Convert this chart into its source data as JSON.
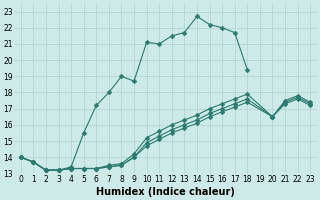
{
  "bg_color": "#ceeae8",
  "grid_color": "#aed4d0",
  "line_color": "#2a7a6e",
  "line_width": 0.8,
  "marker": "D",
  "marker_size": 2.5,
  "xlabel": "Humidex (Indice chaleur)",
  "xlabel_fontsize": 7,
  "tick_fontsize": 5.5,
  "xlim": [
    -0.5,
    23.5
  ],
  "ylim": [
    13,
    23.5
  ],
  "yticks": [
    13,
    14,
    15,
    16,
    17,
    18,
    19,
    20,
    21,
    22,
    23
  ],
  "xticks": [
    0,
    1,
    2,
    3,
    4,
    5,
    6,
    7,
    8,
    9,
    10,
    11,
    12,
    13,
    14,
    15,
    16,
    17,
    18,
    19,
    20,
    21,
    22,
    23
  ],
  "series1_x": [
    0,
    1,
    2,
    3,
    4,
    5,
    6,
    7,
    8,
    9,
    10,
    11,
    12,
    13,
    14,
    15,
    16,
    17,
    18
  ],
  "series1_y": [
    14.0,
    13.7,
    13.2,
    13.2,
    13.4,
    15.5,
    17.2,
    18.0,
    19.0,
    18.7,
    21.1,
    21.0,
    21.5,
    21.7,
    22.7,
    22.2,
    22.0,
    21.7,
    19.4
  ],
  "series2_x": [
    0,
    1,
    2,
    3,
    4,
    5,
    6,
    7,
    8,
    9,
    10,
    11,
    12,
    13,
    14,
    15,
    16,
    17,
    18,
    20,
    21,
    22,
    23
  ],
  "series2_y": [
    14.0,
    13.7,
    13.2,
    13.2,
    13.3,
    13.3,
    13.3,
    13.4,
    13.5,
    14.0,
    14.7,
    15.1,
    15.5,
    15.8,
    16.1,
    16.5,
    16.8,
    17.1,
    17.4,
    16.5,
    17.3,
    17.6,
    17.2
  ],
  "series3_x": [
    0,
    1,
    2,
    3,
    4,
    5,
    6,
    7,
    8,
    9,
    10,
    11,
    12,
    13,
    14,
    15,
    16,
    17,
    18,
    20,
    21,
    22,
    23
  ],
  "series3_y": [
    14.0,
    13.7,
    13.2,
    13.2,
    13.3,
    13.3,
    13.3,
    13.4,
    13.5,
    14.0,
    14.9,
    15.3,
    15.7,
    16.0,
    16.3,
    16.7,
    17.0,
    17.3,
    17.6,
    16.5,
    17.4,
    17.7,
    17.3
  ],
  "series4_x": [
    0,
    1,
    2,
    3,
    4,
    5,
    6,
    7,
    8,
    9,
    10,
    11,
    12,
    13,
    14,
    15,
    16,
    17,
    18,
    20,
    21,
    22,
    23
  ],
  "series4_y": [
    14.0,
    13.7,
    13.2,
    13.2,
    13.3,
    13.3,
    13.3,
    13.5,
    13.6,
    14.2,
    15.2,
    15.6,
    16.0,
    16.3,
    16.6,
    17.0,
    17.3,
    17.6,
    17.9,
    16.5,
    17.5,
    17.8,
    17.4
  ]
}
